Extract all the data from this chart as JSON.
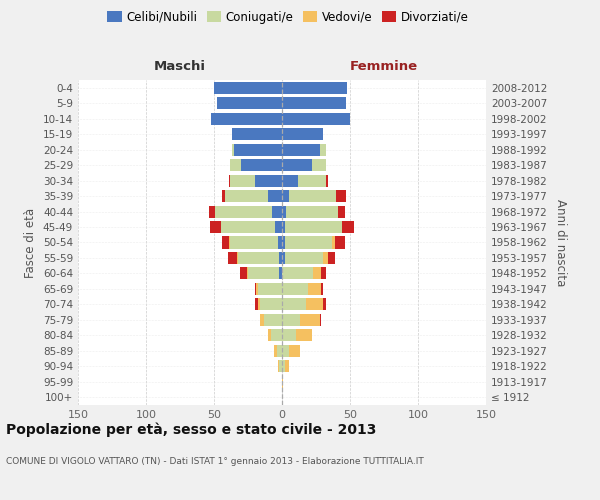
{
  "age_groups": [
    "100+",
    "95-99",
    "90-94",
    "85-89",
    "80-84",
    "75-79",
    "70-74",
    "65-69",
    "60-64",
    "55-59",
    "50-54",
    "45-49",
    "40-44",
    "35-39",
    "30-34",
    "25-29",
    "20-24",
    "15-19",
    "10-14",
    "5-9",
    "0-4"
  ],
  "birth_years": [
    "≤ 1912",
    "1913-1917",
    "1918-1922",
    "1923-1927",
    "1928-1932",
    "1933-1937",
    "1938-1942",
    "1943-1947",
    "1948-1952",
    "1953-1957",
    "1958-1962",
    "1963-1967",
    "1968-1972",
    "1973-1977",
    "1978-1982",
    "1983-1987",
    "1988-1992",
    "1993-1997",
    "1998-2002",
    "2003-2007",
    "2008-2012"
  ],
  "male_celibi": [
    0,
    0,
    0,
    0,
    0,
    0,
    0,
    0,
    2,
    2,
    3,
    5,
    7,
    10,
    20,
    30,
    35,
    37,
    52,
    48,
    50
  ],
  "male_coniugati": [
    0,
    0,
    2,
    4,
    8,
    13,
    16,
    18,
    23,
    30,
    35,
    40,
    42,
    32,
    18,
    8,
    2,
    0,
    0,
    0,
    0
  ],
  "male_vedovi": [
    0,
    0,
    1,
    2,
    2,
    3,
    2,
    1,
    1,
    1,
    1,
    0,
    0,
    0,
    0,
    0,
    0,
    0,
    0,
    0,
    0
  ],
  "male_divorziati": [
    0,
    0,
    0,
    0,
    0,
    0,
    2,
    1,
    5,
    7,
    5,
    8,
    5,
    2,
    1,
    0,
    0,
    0,
    0,
    0,
    0
  ],
  "female_nubili": [
    0,
    0,
    0,
    0,
    0,
    0,
    0,
    0,
    0,
    2,
    2,
    2,
    3,
    5,
    12,
    22,
    28,
    30,
    50,
    47,
    48
  ],
  "female_coniugate": [
    0,
    0,
    2,
    5,
    10,
    13,
    18,
    19,
    23,
    28,
    35,
    42,
    38,
    35,
    20,
    10,
    4,
    0,
    0,
    0,
    0
  ],
  "female_vedove": [
    0,
    1,
    3,
    8,
    12,
    15,
    12,
    10,
    6,
    4,
    2,
    0,
    0,
    0,
    0,
    0,
    0,
    0,
    0,
    0,
    0
  ],
  "female_divorziate": [
    0,
    0,
    0,
    0,
    0,
    1,
    2,
    1,
    3,
    5,
    7,
    9,
    5,
    7,
    2,
    0,
    0,
    0,
    0,
    0,
    0
  ],
  "color_celibi": "#4a78c0",
  "color_coniugati": "#c8d9a0",
  "color_vedovi": "#f5c060",
  "color_divorziati": "#cc2222",
  "xlim": 150,
  "bg_color": "#f0f0f0",
  "plot_bg": "#ffffff",
  "title": "Popolazione per età, sesso e stato civile - 2013",
  "subtitle": "COMUNE DI VIGOLO VATTARO (TN) - Dati ISTAT 1° gennaio 2013 - Elaborazione TUTTITALIA.IT",
  "label_maschi": "Maschi",
  "label_femmine": "Femmine",
  "ylabel_left": "Fasce di età",
  "ylabel_right": "Anni di nascita",
  "legend_labels": [
    "Celibi/Nubili",
    "Coniugati/e",
    "Vedovi/e",
    "Divorziati/e"
  ]
}
